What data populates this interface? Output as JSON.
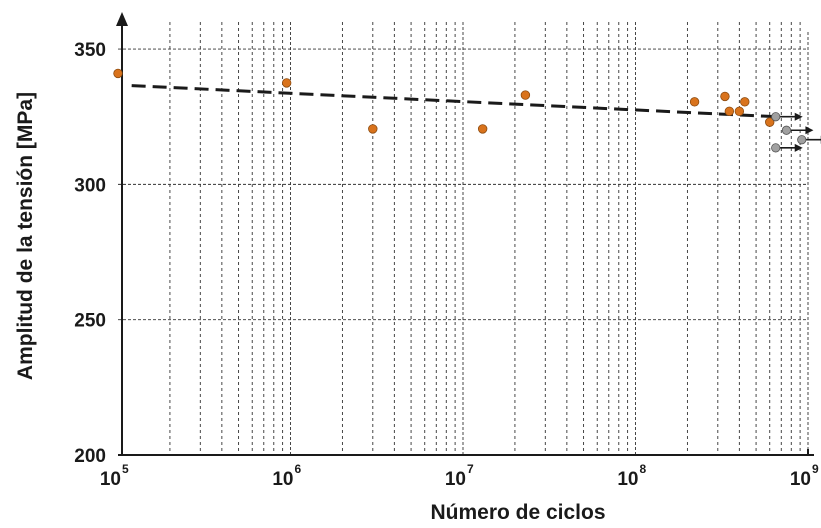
{
  "chart_data": {
    "type": "scatter",
    "title": "",
    "xlabel": "Número de ciclos",
    "ylabel": "Amplitud de la tensión [MPa]",
    "x_scale": "log",
    "xlim": [
      100000,
      1000000000
    ],
    "ylim": [
      200,
      360
    ],
    "x_ticks": [
      {
        "value": 100000,
        "base": "10",
        "exp": "5"
      },
      {
        "value": 1000000,
        "base": "10",
        "exp": "6"
      },
      {
        "value": 10000000,
        "base": "10",
        "exp": "7"
      },
      {
        "value": 100000000,
        "base": "10",
        "exp": "8"
      },
      {
        "value": 1000000000,
        "base": "10",
        "exp": "9"
      }
    ],
    "y_ticks": [
      200,
      250,
      300,
      350
    ],
    "grid": true,
    "series": [
      {
        "marker_color": "#d9731c",
        "points": [
          {
            "x": 100000,
            "y": 341
          },
          {
            "x": 950000,
            "y": 337.5
          },
          {
            "x": 3000000,
            "y": 320.5
          },
          {
            "x": 13000000,
            "y": 320.5
          },
          {
            "x": 23000000,
            "y": 333
          },
          {
            "x": 220000000,
            "y": 330.5
          },
          {
            "x": 330000000,
            "y": 332.5
          },
          {
            "x": 350000000,
            "y": 327
          },
          {
            "x": 400000000,
            "y": 327
          },
          {
            "x": 430000000,
            "y": 330.5
          },
          {
            "x": 600000000,
            "y": 323
          }
        ]
      },
      {
        "marker_color": "#a0a0a0",
        "runout": true,
        "points": [
          {
            "x": 650000000,
            "y": 325
          },
          {
            "x": 750000000,
            "y": 320
          },
          {
            "x": 650000000,
            "y": 313.5
          },
          {
            "x": 920000000,
            "y": 316.5
          }
        ]
      }
    ],
    "trendline": {
      "style": "dashed",
      "color": "#1a1a1a",
      "x": [
        120000,
        650000000
      ],
      "y": [
        336.5,
        325
      ]
    }
  }
}
